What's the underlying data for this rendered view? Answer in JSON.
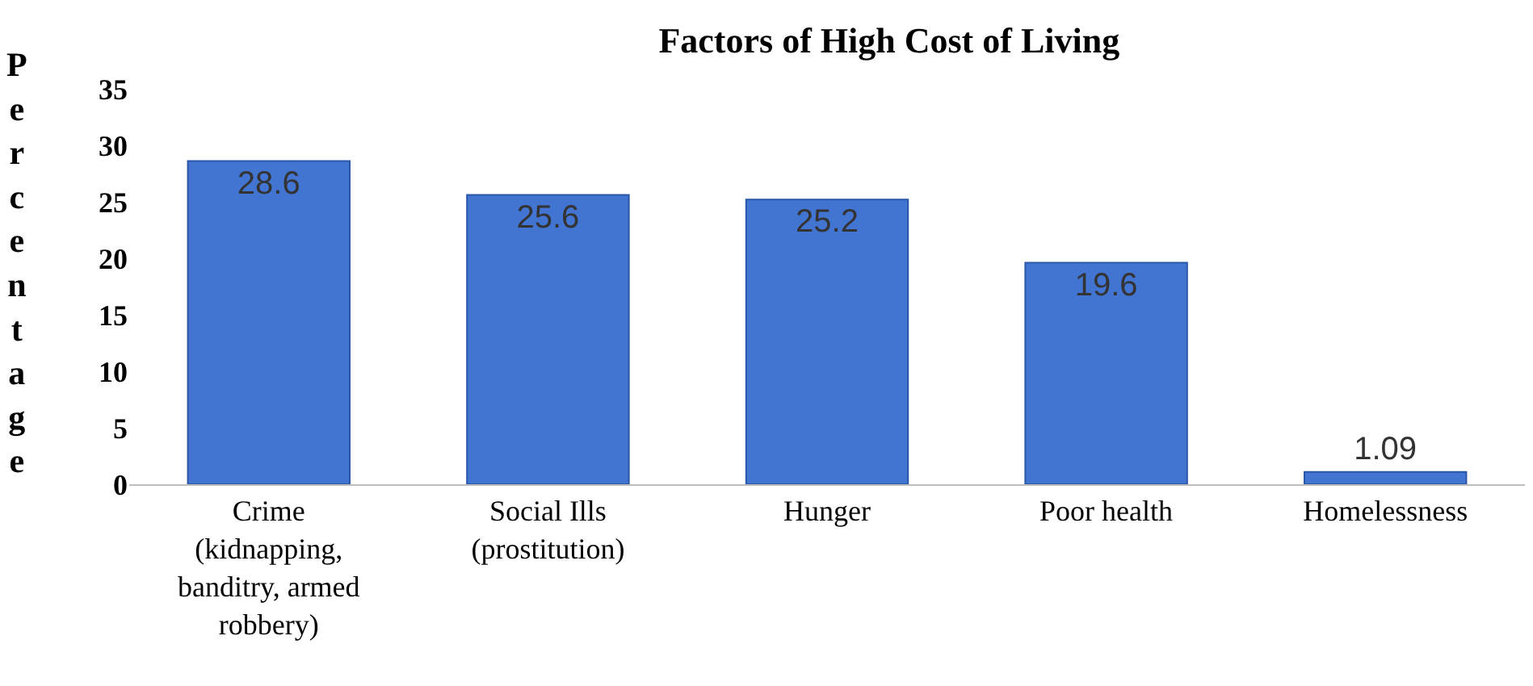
{
  "chart_data": {
    "type": "bar",
    "title": "Factors of High Cost of Living",
    "ylabel": "Percentage",
    "categories": [
      "Crime (kidnapping, banditry, armed robbery)",
      "Social Ills (prostitution)",
      "Hunger",
      "Poor health",
      "Homelessness"
    ],
    "values": [
      28.6,
      25.6,
      25.2,
      19.6,
      1.09
    ],
    "color": "#4274d2",
    "ylim": [
      0,
      35
    ],
    "yticks": [
      0,
      5,
      10,
      15,
      20,
      25,
      30,
      35
    ],
    "data_labels": true
  }
}
